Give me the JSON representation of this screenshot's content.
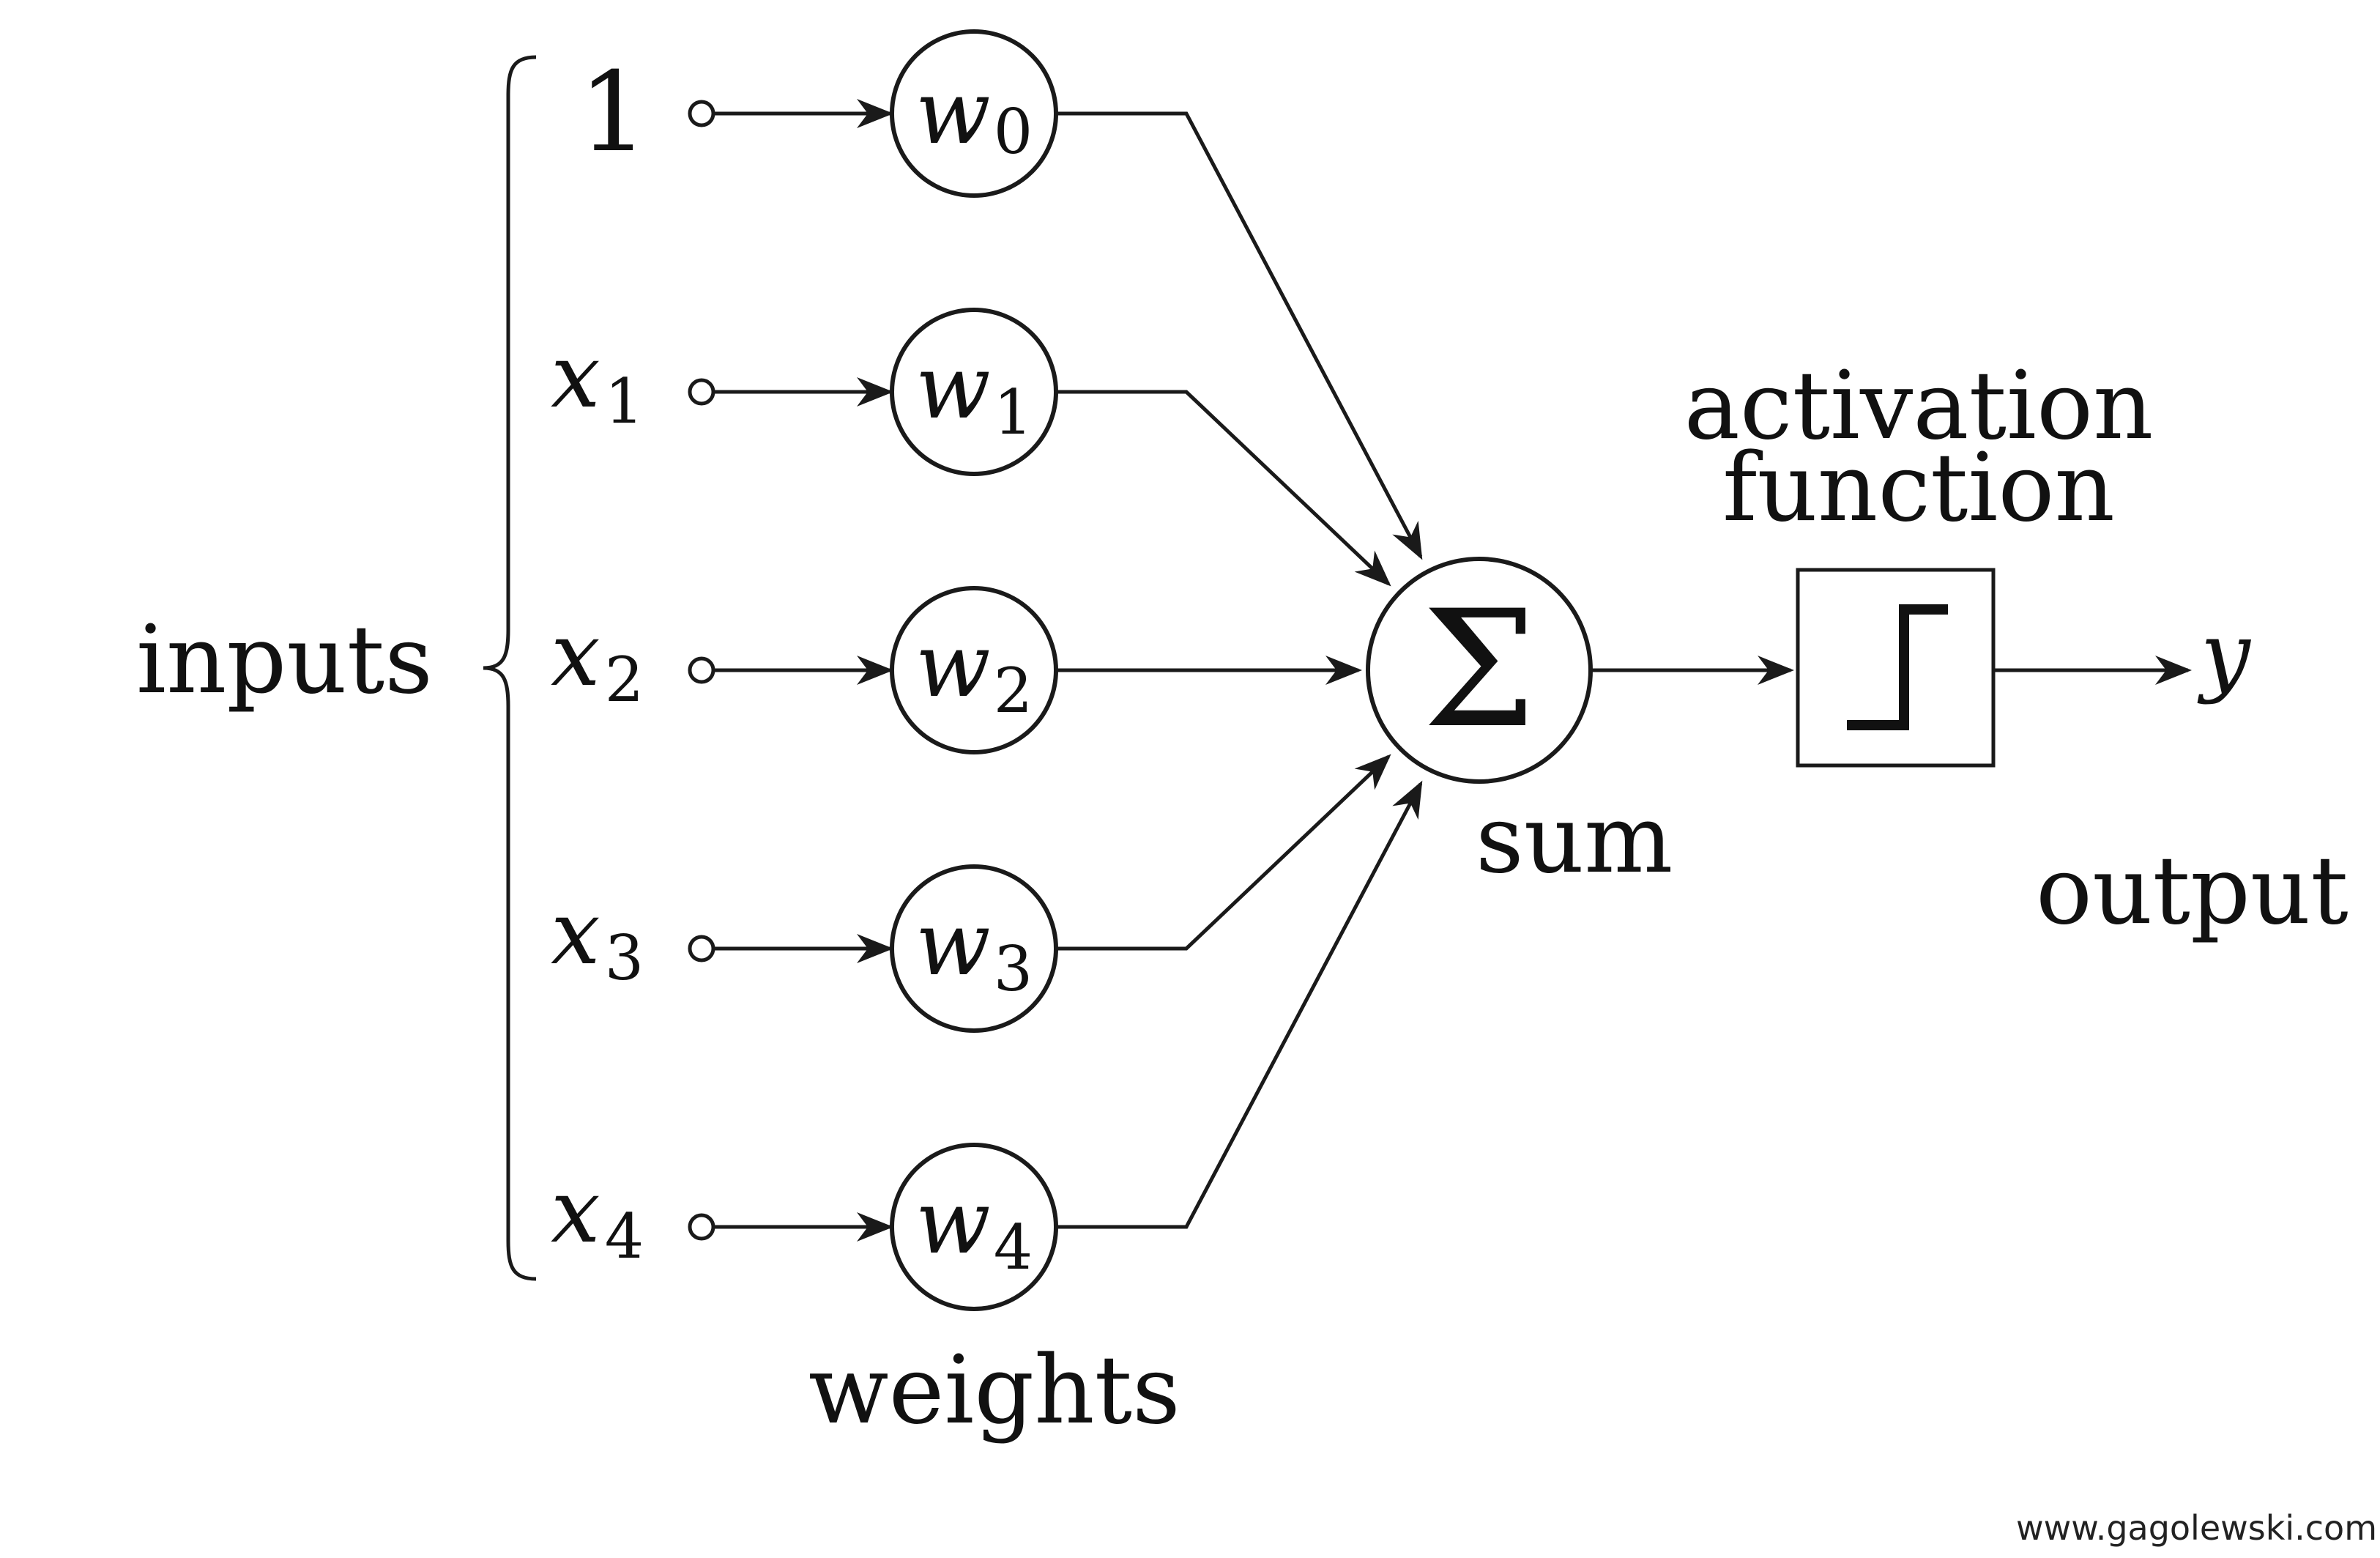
{
  "labels": {
    "inputs": "inputs",
    "weights": "weights",
    "sum": "sum",
    "activation_line1": "activation",
    "activation_line2": "function",
    "output": "output",
    "output_var": "y",
    "sum_symbol": "Σ"
  },
  "inputs": [
    {
      "symbol": "1",
      "sub": ""
    },
    {
      "symbol": "x",
      "sub": "1"
    },
    {
      "symbol": "x",
      "sub": "2"
    },
    {
      "symbol": "x",
      "sub": "3"
    },
    {
      "symbol": "x",
      "sub": "4"
    }
  ],
  "weights": [
    {
      "symbol": "w",
      "sub": "0"
    },
    {
      "symbol": "w",
      "sub": "1"
    },
    {
      "symbol": "w",
      "sub": "2"
    },
    {
      "symbol": "w",
      "sub": "3"
    },
    {
      "symbol": "w",
      "sub": "4"
    }
  ],
  "watermark": "www.gagolewski.com"
}
